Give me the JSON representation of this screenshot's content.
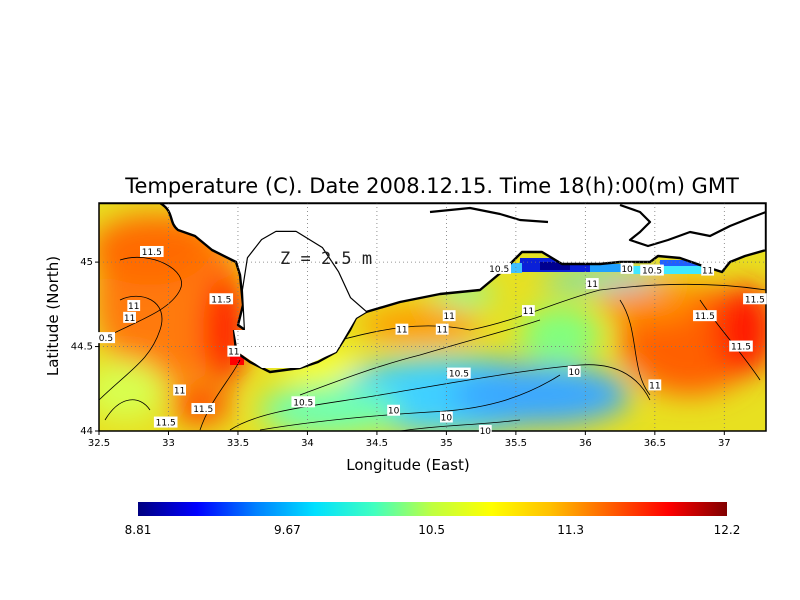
{
  "title": "Temperature (C). Date 2008.12.15. Time 18(h):00(m) GMT",
  "depth_label": "Z = 2.5 m",
  "xlabel": "Longitude (East)",
  "ylabel": "Latitude (North)",
  "map": {
    "lon_range": [
      32.5,
      37.3
    ],
    "lat_range": [
      44.0,
      45.35
    ],
    "x_ticks": [
      "32.5",
      "33",
      "33.5",
      "34",
      "34.5",
      "35",
      "35.5",
      "36",
      "36.5",
      "37"
    ],
    "y_ticks": [
      "44",
      "44.5",
      "45"
    ],
    "grid": "dotted",
    "coastline_color": "#000000",
    "land_color": "#ffffff"
  },
  "contour_labels": [
    {
      "text": "11.5",
      "lon": 32.88,
      "lat": 45.06
    },
    {
      "text": "11.5",
      "lon": 32.98,
      "lat": 44.05
    },
    {
      "text": "11",
      "lon": 32.75,
      "lat": 44.74
    },
    {
      "text": "11",
      "lon": 32.72,
      "lat": 44.67
    },
    {
      "text": "0.5",
      "lon": 32.55,
      "lat": 44.55
    },
    {
      "text": "11.5",
      "lon": 33.38,
      "lat": 44.78
    },
    {
      "text": "11",
      "lon": 33.47,
      "lat": 44.47
    },
    {
      "text": "11",
      "lon": 33.08,
      "lat": 44.24
    },
    {
      "text": "11.5",
      "lon": 33.25,
      "lat": 44.13
    },
    {
      "text": "10.5",
      "lon": 33.97,
      "lat": 44.17
    },
    {
      "text": "10",
      "lon": 34.62,
      "lat": 44.12
    },
    {
      "text": "10",
      "lon": 35.0,
      "lat": 44.08
    },
    {
      "text": "10",
      "lon": 35.28,
      "lat": 44.0
    },
    {
      "text": "10.5",
      "lon": 35.09,
      "lat": 44.34
    },
    {
      "text": "10",
      "lon": 35.92,
      "lat": 44.35
    },
    {
      "text": "11",
      "lon": 34.68,
      "lat": 44.6
    },
    {
      "text": "11",
      "lon": 34.97,
      "lat": 44.6
    },
    {
      "text": "11",
      "lon": 35.02,
      "lat": 44.68
    },
    {
      "text": "10.5",
      "lon": 35.38,
      "lat": 44.96
    },
    {
      "text": "11",
      "lon": 35.59,
      "lat": 44.71
    },
    {
      "text": "11",
      "lon": 36.05,
      "lat": 44.87
    },
    {
      "text": "10",
      "lon": 36.3,
      "lat": 44.96
    },
    {
      "text": "10.5",
      "lon": 36.48,
      "lat": 44.95
    },
    {
      "text": "11",
      "lon": 36.88,
      "lat": 44.95
    },
    {
      "text": "11.5",
      "lon": 37.22,
      "lat": 44.78
    },
    {
      "text": "11.5",
      "lon": 36.86,
      "lat": 44.68
    },
    {
      "text": "11.5",
      "lon": 37.12,
      "lat": 44.5
    },
    {
      "text": "11",
      "lon": 36.5,
      "lat": 44.27
    }
  ],
  "colorbar": {
    "min": 8.81,
    "max": 12.2,
    "tick_labels": [
      "8.81",
      "9.67",
      "10.5",
      "11.3",
      "12.2"
    ],
    "stops": [
      "#000080",
      "#0000ff",
      "#0080ff",
      "#00e0ff",
      "#40ffc0",
      "#c0ff40",
      "#ffff00",
      "#ffc000",
      "#ff6000",
      "#ff0000",
      "#800000"
    ]
  }
}
